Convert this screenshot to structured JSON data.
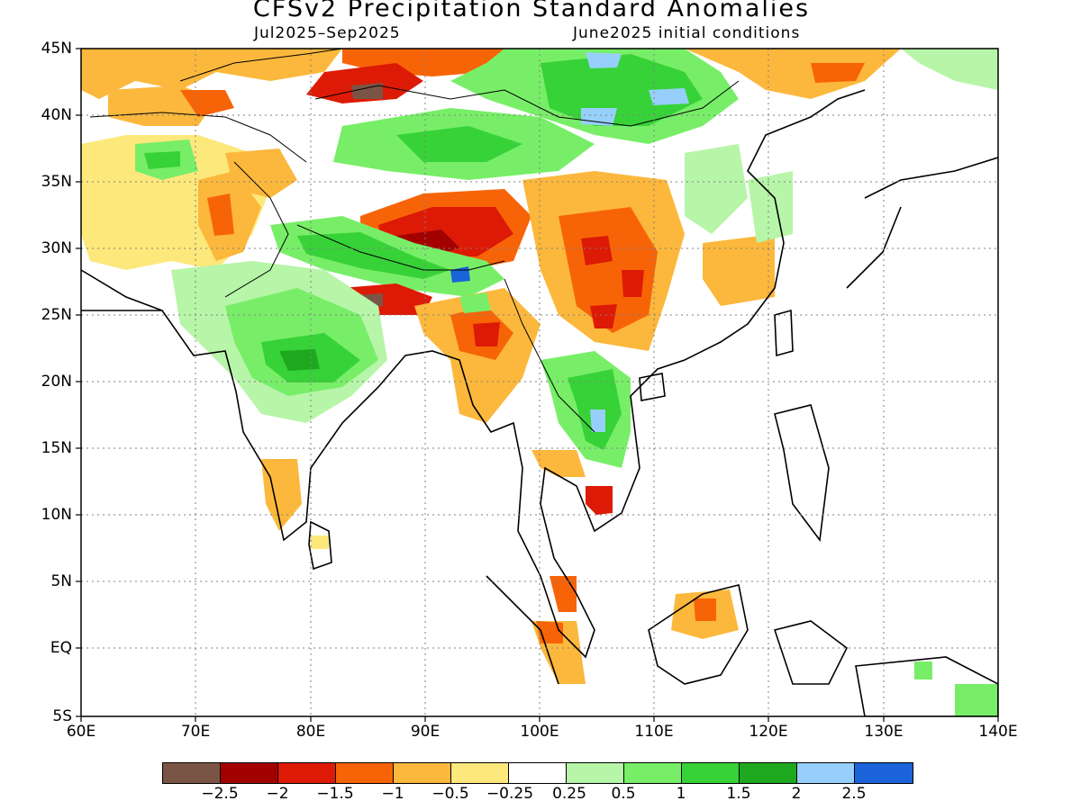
{
  "title": "CFSv2 Precipitation Standard Anomalies",
  "subtitle_period": "Jul2025–Sep2025",
  "subtitle_ic": "June2025 initial conditions",
  "axes": {
    "lat_labels": [
      "45N",
      "40N",
      "35N",
      "30N",
      "25N",
      "20N",
      "15N",
      "10N",
      "5N",
      "EQ",
      "5S"
    ],
    "lon_labels": [
      "60E",
      "70E",
      "80E",
      "90E",
      "100E",
      "110E",
      "120E",
      "130E",
      "140E"
    ],
    "lat_range": [
      -5,
      45
    ],
    "lon_range": [
      60,
      140
    ],
    "grid": "dotted"
  },
  "colorbar": {
    "colors": [
      "#7a5546",
      "#a30000",
      "#dd1a05",
      "#f76408",
      "#fcb83c",
      "#fde87c",
      "#ffffff",
      "#b7f5a8",
      "#78ee68",
      "#37d238",
      "#1ea81e",
      "#96d0fa",
      "#1a63d9"
    ],
    "labels": [
      "−2.5",
      "−2",
      "−1.5",
      "−1",
      "−0.5",
      "−0.25",
      "0.25",
      "0.5",
      "1",
      "1.5",
      "2",
      "2.5"
    ]
  }
}
